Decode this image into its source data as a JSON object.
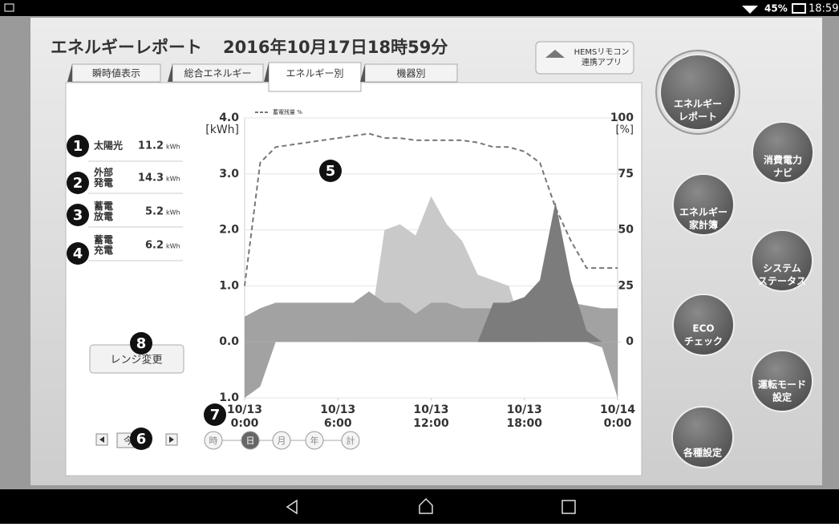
{
  "status": {
    "battery": "45%",
    "time": "18:59"
  },
  "title": "エネルギーレポート",
  "datetime": "2016年10月17日18時59分",
  "tabs": [
    "瞬時値表示",
    "総合エネルギー",
    "エネルギー別",
    "機器別"
  ],
  "hems": [
    "HEMSリモコン",
    "連携アプリ"
  ],
  "readings": [
    {
      "lines": [
        "太陽光"
      ],
      "value": "11.2",
      "unit": "kWh"
    },
    {
      "lines": [
        "外部",
        "発電"
      ],
      "value": "14.3",
      "unit": "kWh"
    },
    {
      "lines": [
        "蓄電",
        "放電"
      ],
      "value": "5.2",
      "unit": "kWh"
    },
    {
      "lines": [
        "蓄電",
        "充電"
      ],
      "value": "6.2",
      "unit": "kWh"
    }
  ],
  "markers": [
    "1",
    "2",
    "3",
    "4",
    "5",
    "6",
    "7",
    "8"
  ],
  "range_button": "レンジ変更",
  "today": "今日",
  "periods": [
    "時",
    "日",
    "月",
    "年",
    "計"
  ],
  "menu": [
    {
      "lines": [
        "エネルギー",
        "レポート"
      ]
    },
    {
      "lines": [
        "消費電力",
        "ナビ"
      ]
    },
    {
      "lines": [
        "エネルギー",
        "家計簿"
      ]
    },
    {
      "lines": [
        "システム",
        "ステータス"
      ]
    },
    {
      "lines": [
        "ECO",
        "チェック"
      ]
    },
    {
      "lines": [
        "運転モード",
        "設定"
      ]
    },
    {
      "lines": [
        "各種設定"
      ]
    }
  ],
  "chart_data": {
    "type": "area",
    "y_unit": "[kWh]",
    "y2_unit": "[%]",
    "x": [
      0,
      1,
      2,
      3,
      4,
      5,
      6,
      7,
      8,
      9,
      10,
      11,
      12,
      13,
      14,
      15,
      16,
      17,
      18,
      19,
      20,
      21,
      22,
      23,
      24
    ],
    "xlim": [
      0,
      24
    ],
    "xticks": [
      {
        "value": 0,
        "date": "10/13",
        "time": "0:00"
      },
      {
        "value": 6,
        "date": "10/13",
        "time": "6:00"
      },
      {
        "value": 12,
        "date": "10/13",
        "time": "12:00"
      },
      {
        "value": 18,
        "date": "10/13",
        "time": "18:00"
      },
      {
        "value": 24,
        "date": "10/14",
        "time": "0:00"
      }
    ],
    "ylim": [
      -1,
      4
    ],
    "yticks": [
      {
        "value": -1,
        "label": "1.0"
      },
      {
        "value": 0,
        "label": "0.0"
      },
      {
        "value": 1,
        "label": "1.0"
      },
      {
        "value": 2,
        "label": "2.0"
      },
      {
        "value": 3,
        "label": "3.0"
      },
      {
        "value": 4,
        "label": "4.0"
      }
    ],
    "y2lim": [
      -25,
      100
    ],
    "y2ticks": [
      0,
      25,
      50,
      75,
      100
    ],
    "series": [
      {
        "color": "#c9c9c9",
        "values": [
          0,
          0,
          0,
          0,
          0,
          0,
          0,
          0,
          0.1,
          2.0,
          2.1,
          1.9,
          2.6,
          2.1,
          1.8,
          1.2,
          1.1,
          1.0,
          0.1,
          0,
          0,
          0,
          0,
          0,
          0
        ]
      },
      {
        "color": "#a2a2a2",
        "values": [
          0.45,
          0.6,
          0.7,
          0.7,
          0.7,
          0.7,
          0.7,
          0.7,
          0.9,
          0.7,
          0.7,
          0.5,
          0.7,
          0.7,
          0.6,
          0.6,
          0.6,
          0.6,
          0.6,
          0.6,
          0.65,
          0.7,
          0.65,
          0.6,
          0.6
        ]
      },
      {
        "color": "#7c7c7c",
        "values": [
          0,
          0,
          0,
          0,
          0,
          0,
          0,
          0,
          0,
          0,
          0,
          0,
          0,
          0,
          0,
          0,
          0.7,
          0.7,
          0.8,
          1.1,
          2.5,
          1.1,
          0.2,
          0,
          0
        ]
      },
      {
        "color": "#a2a2a2",
        "values": [
          -1,
          -0.8,
          0,
          0,
          0,
          0,
          0,
          0,
          0,
          0,
          0,
          0,
          0,
          0,
          0,
          0,
          0,
          0,
          0,
          0,
          0,
          0,
          0,
          -0.1,
          -1
        ]
      },
      {
        "name": "蓄電残量 %",
        "color": "#777777",
        "axis": "y2",
        "line": true,
        "values": [
          25,
          80,
          87,
          88,
          89,
          90,
          91,
          92,
          93,
          91,
          91,
          90,
          90,
          90,
          90,
          89,
          87,
          87,
          85,
          80,
          60,
          45,
          33,
          33,
          33
        ]
      }
    ]
  }
}
